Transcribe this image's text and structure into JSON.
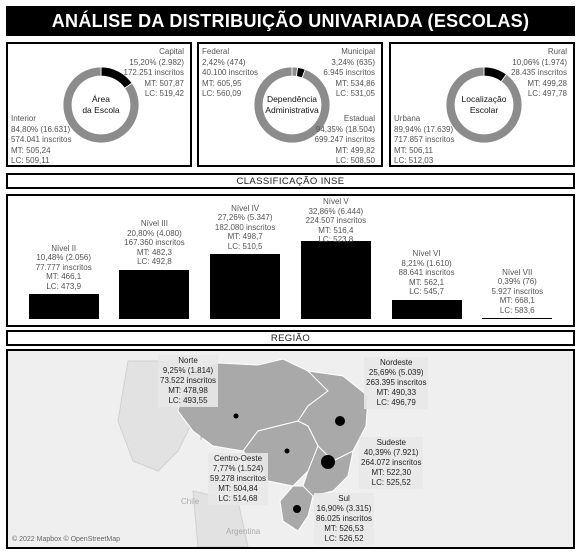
{
  "title": "ANÁLISE DA DISTRIBUIÇÃO UNIVARIADA (ESCOLAS)",
  "colors": {
    "dark": "#000000",
    "light": "#8c8c8c",
    "map_land": "#cfcfcf",
    "map_region": "#a9a9a9",
    "map_water": "#efefef"
  },
  "chart_data": [
    {
      "type": "pie",
      "center_label_lines": [
        "Área",
        "da Escola"
      ],
      "slices": [
        {
          "name": "Capital",
          "percent": 15.2,
          "lines": [
            "Capital",
            "15,20% (2.982)",
            "172.251 inscritos",
            "MT: 507,87",
            "LC: 519,42"
          ],
          "color": "#000000"
        },
        {
          "name": "Interior",
          "percent": 84.8,
          "lines": [
            "Interior",
            "84,80% (16.631)",
            "574.041 inscritos",
            "MT: 505,24",
            "LC: 509,11"
          ],
          "color": "#8c8c8c"
        }
      ]
    },
    {
      "type": "pie",
      "center_label_lines": [
        "Dependência",
        "Administrativa"
      ],
      "slices": [
        {
          "name": "Federal",
          "percent": 2.42,
          "lines": [
            "Federal",
            "2,42% (474)",
            "40.100 inscritos",
            "MT: 605,95",
            "LC: 560,09"
          ],
          "color": "#8c8c8c"
        },
        {
          "name": "Municipal",
          "percent": 3.24,
          "lines": [
            "Municipal",
            "3,24% (635)",
            "6.945 inscritos",
            "MT: 534,86",
            "LC: 531,05"
          ],
          "color": "#000000"
        },
        {
          "name": "Estadual",
          "percent": 94.35,
          "lines": [
            "Estadual",
            "94,35% (18.504)",
            "699.247 inscritos",
            "MT: 499,82",
            "LC: 508,50"
          ],
          "color": "#8c8c8c"
        }
      ]
    },
    {
      "type": "pie",
      "center_label_lines": [
        "Localização",
        "Escolar"
      ],
      "slices": [
        {
          "name": "Rural",
          "percent": 10.06,
          "lines": [
            "Rural",
            "10,06% (1.974)",
            "28.435 inscritos",
            "MT: 499,28",
            "LC: 497,78"
          ],
          "color": "#000000"
        },
        {
          "name": "Urbana",
          "percent": 89.94,
          "lines": [
            "Urbana",
            "89,94% (17.639)",
            "717.857 inscritos",
            "MT: 506,11",
            "LC: 512,03"
          ],
          "color": "#8c8c8c"
        }
      ]
    },
    {
      "type": "bar",
      "title": "CLASSIFICAÇÃO INSE",
      "categories": [
        "Nível II",
        "Nível III",
        "Nível IV",
        "Nível V",
        "Nível VI",
        "Nível VII"
      ],
      "values": [
        10.48,
        20.8,
        27.26,
        32.86,
        8.21,
        0.39
      ],
      "labels": [
        [
          "Nível II",
          "10,48% (2.056)",
          "77.777 inscritos",
          "MT: 466,1",
          "LC: 473,9"
        ],
        [
          "Nível III",
          "20,80% (4.080)",
          "167.360 inscritos",
          "MT: 482,3",
          "LC: 492,8"
        ],
        [
          "Nível IV",
          "27,26% (5.347)",
          "182.080 inscritos",
          "MT: 498,7",
          "LC: 510,5"
        ],
        [
          "Nível V",
          "32,86% (6.444)",
          "224.507 inscritos",
          "MT: 516,4",
          "LC: 523,8"
        ],
        [
          "Nível VI",
          "8,21% (1.610)",
          "88.641 inscritos",
          "MT: 562,1",
          "LC: 545,7"
        ],
        [
          "Nível VII",
          "0,39% (76)",
          "5.927 inscritos",
          "MT: 668,1",
          "LC: 583,6"
        ]
      ]
    },
    {
      "type": "map",
      "title": "REGIÃO",
      "regions": [
        {
          "name": "Norte",
          "percent": 9.25,
          "lines": [
            "Norte",
            "9,25% (1.814)",
            "73.522 inscritos",
            "MT: 478,98",
            "LC: 493,55"
          ]
        },
        {
          "name": "Nordeste",
          "percent": 25.69,
          "lines": [
            "Nordeste",
            "25,69% (5.039)",
            "263.395 inscritos",
            "MT: 490,33",
            "LC: 496,79"
          ]
        },
        {
          "name": "Centro-Oeste",
          "percent": 7.77,
          "lines": [
            "Centro-Oeste",
            "7,77% (1.524)",
            "59.278 inscritos",
            "MT: 504,84",
            "LC: 514,68"
          ]
        },
        {
          "name": "Sudeste",
          "percent": 40.39,
          "lines": [
            "Sudeste",
            "40,39% (7.921)",
            "264.072 inscritos",
            "MT: 522,30",
            "LC: 525,52"
          ]
        },
        {
          "name": "Sul",
          "percent": 16.9,
          "lines": [
            "Sul",
            "16,90% (3.315)",
            "86.025 inscritos",
            "MT: 526,53",
            "LC: 526,52"
          ]
        }
      ],
      "countries": [
        "Peru",
        "Chile",
        "Argentina"
      ],
      "credit": "© 2022 Mapbox © OpenStreetMap"
    }
  ]
}
